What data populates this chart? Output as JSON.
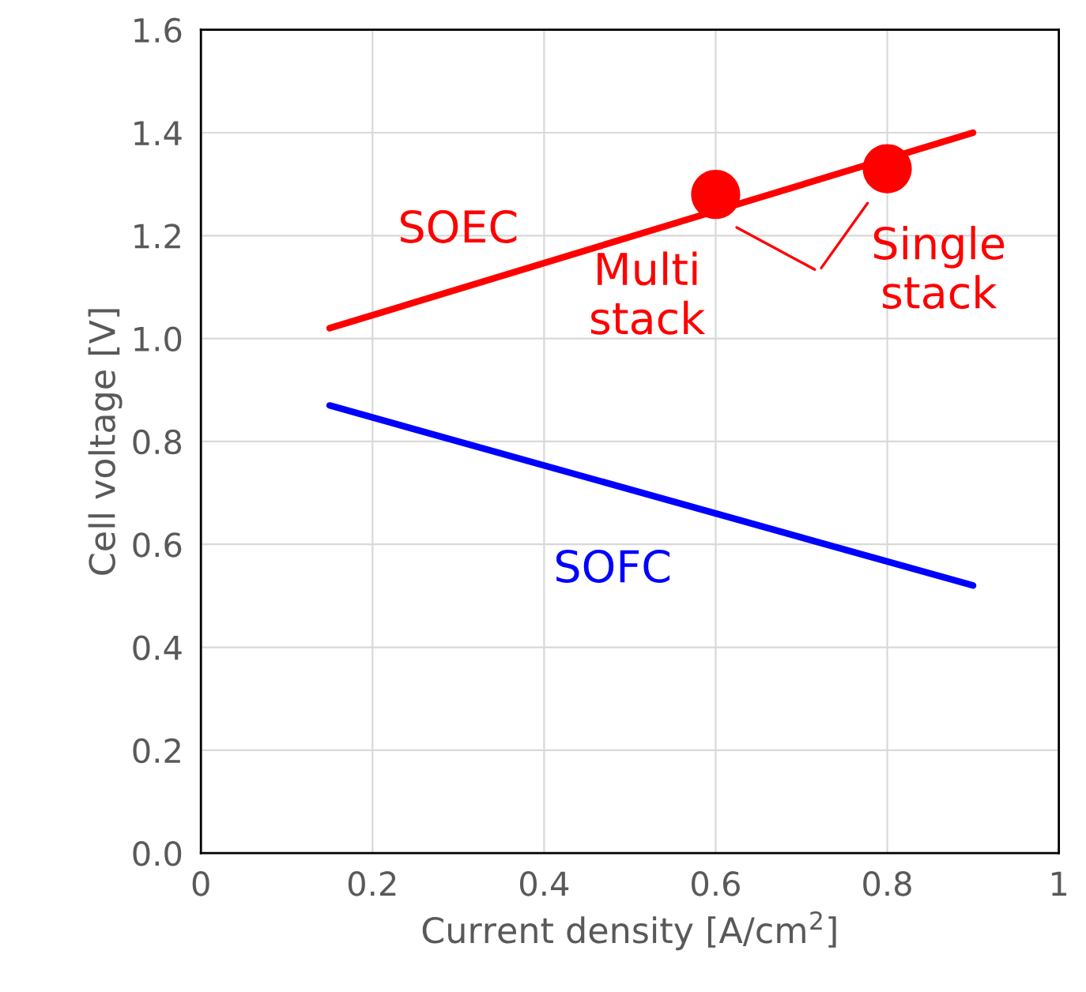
{
  "chart_data": {
    "type": "line",
    "xlabel": "Current density [A/cm$^{2}$]",
    "ylabel": "Cell voltage [V]",
    "xlim": [
      0,
      1
    ],
    "ylim": [
      0,
      1.6
    ],
    "xticks": [
      {
        "value": 0,
        "label": "0"
      },
      0.2,
      0.4,
      0.6,
      0.8,
      {
        "value": 1,
        "label": "1"
      }
    ],
    "yticks": [
      {
        "value": 0,
        "label": "0.0"
      },
      0.2,
      0.4,
      0.6,
      0.8,
      {
        "value": 1,
        "label": "1.0"
      },
      1.2,
      1.4,
      1.6
    ],
    "grid": true,
    "series": [
      {
        "name": "SOEC",
        "color": "#ff0000",
        "x": [
          0.15,
          0.9
        ],
        "values": [
          1.02,
          1.4
        ]
      },
      {
        "name": "SOFC",
        "color": "#0000ff",
        "x": [
          0.15,
          0.9
        ],
        "values": [
          0.87,
          0.52
        ]
      },
      {
        "type": "scatter",
        "color": "#ff0000",
        "x": [
          0.6,
          0.8
        ],
        "values": [
          1.28,
          1.33
        ],
        "marker": "circle"
      }
    ],
    "annotations": [
      {
        "text": "Multi\nstack",
        "x": 0.6,
        "y": 1.28
      },
      {
        "text": "Single\nstack",
        "x": 0.8,
        "y": 1.33
      }
    ]
  }
}
